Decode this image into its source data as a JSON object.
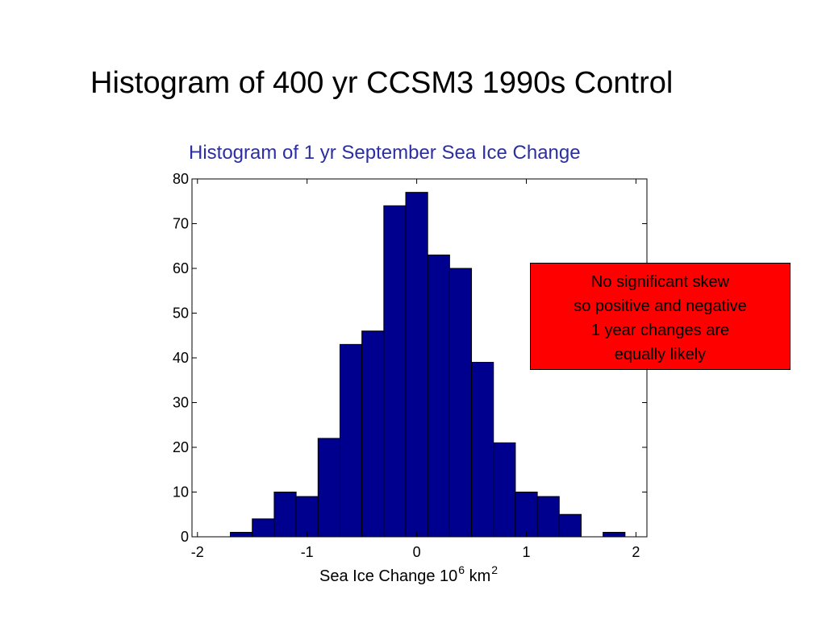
{
  "slide": {
    "title": "Histogram of 400 yr CCSM3 1990s Control"
  },
  "annotation": {
    "lines": [
      "No significant skew",
      "so positive and negative",
      "1 year changes are",
      "equally likely"
    ],
    "background": "#ff0000"
  },
  "chart_data": {
    "type": "bar",
    "title": "Histogram of 1 yr September Sea Ice Change",
    "xlabel": {
      "text": "Sea Ice Change 10",
      "exp1": "6",
      "unit": " km",
      "exp2": "2"
    },
    "ylabel": "",
    "xlim": [
      -2.05,
      2.1
    ],
    "ylim": [
      0,
      80
    ],
    "xticks": [
      -2,
      -1,
      0,
      1,
      2
    ],
    "yticks": [
      0,
      10,
      20,
      30,
      40,
      50,
      60,
      70,
      80
    ],
    "bin_width": 0.2,
    "bin_centers": [
      -1.6,
      -1.4,
      -1.2,
      -1.0,
      -0.8,
      -0.6,
      -0.4,
      -0.2,
      0.0,
      0.2,
      0.4,
      0.6,
      0.8,
      1.0,
      1.2,
      1.4,
      1.6,
      1.8
    ],
    "values": [
      1,
      4,
      10,
      9,
      22,
      43,
      46,
      74,
      77,
      63,
      60,
      39,
      21,
      10,
      9,
      5,
      0,
      1
    ],
    "bar_color": "#00008f",
    "title_color": "#2b2fa1",
    "grid": false
  }
}
